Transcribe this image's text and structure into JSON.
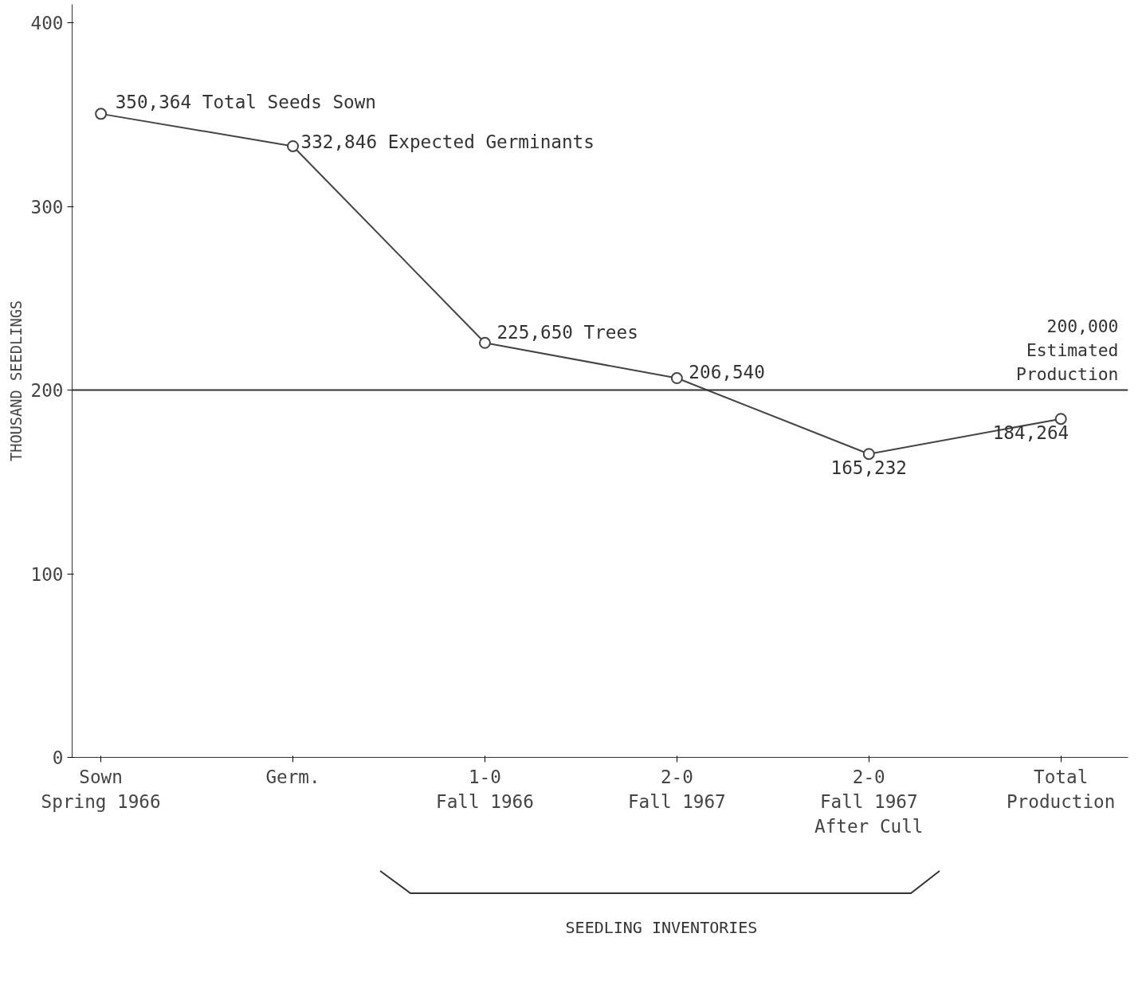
{
  "chart_data": {
    "type": "line",
    "ylabel": "THOUSAND SEEDLINGS",
    "categories": [
      "Sown\nSpring 1966",
      "Germ.",
      "1-0\nFall 1966",
      "2-0\nFall 1967",
      "2-0\nFall 1967\nAfter Cull",
      "Total\nProduction"
    ],
    "series": [
      {
        "color": "#444444",
        "values": [
          350.4,
          332.8,
          225.7,
          206.5,
          165.2,
          184.3
        ]
      }
    ],
    "annotations": [
      {
        "text": "350,364 Total Seeds Sown",
        "x": "Sown\nSpring 1966",
        "y": 350.4
      },
      {
        "text": "332,846 Expected Germinants",
        "x": "Germ.",
        "y": 332.8
      },
      {
        "text": "225,650 Trees",
        "x": "1-0\nFall 1966",
        "y": 225.7
      },
      {
        "text": "206,540",
        "x": "2-0\nFall 1967",
        "y": 206.5
      },
      {
        "text": "165,232",
        "x": "2-0\nFall 1967\nAfter Cull",
        "y": 165.2
      },
      {
        "text": "184,264",
        "x": "Total\nProduction",
        "y": 184.3
      },
      "SEEDLING INVENTORIES"
    ],
    "ylim": [
      0,
      410
    ],
    "yticks": [
      0,
      100,
      200,
      300,
      400
    ],
    "ref_lines": [
      {
        "axis": "y",
        "value": 200,
        "label": "200,000\nEstimated\nProduction",
        "color": "#333333"
      }
    ],
    "marker": "circle",
    "grid": false
  }
}
